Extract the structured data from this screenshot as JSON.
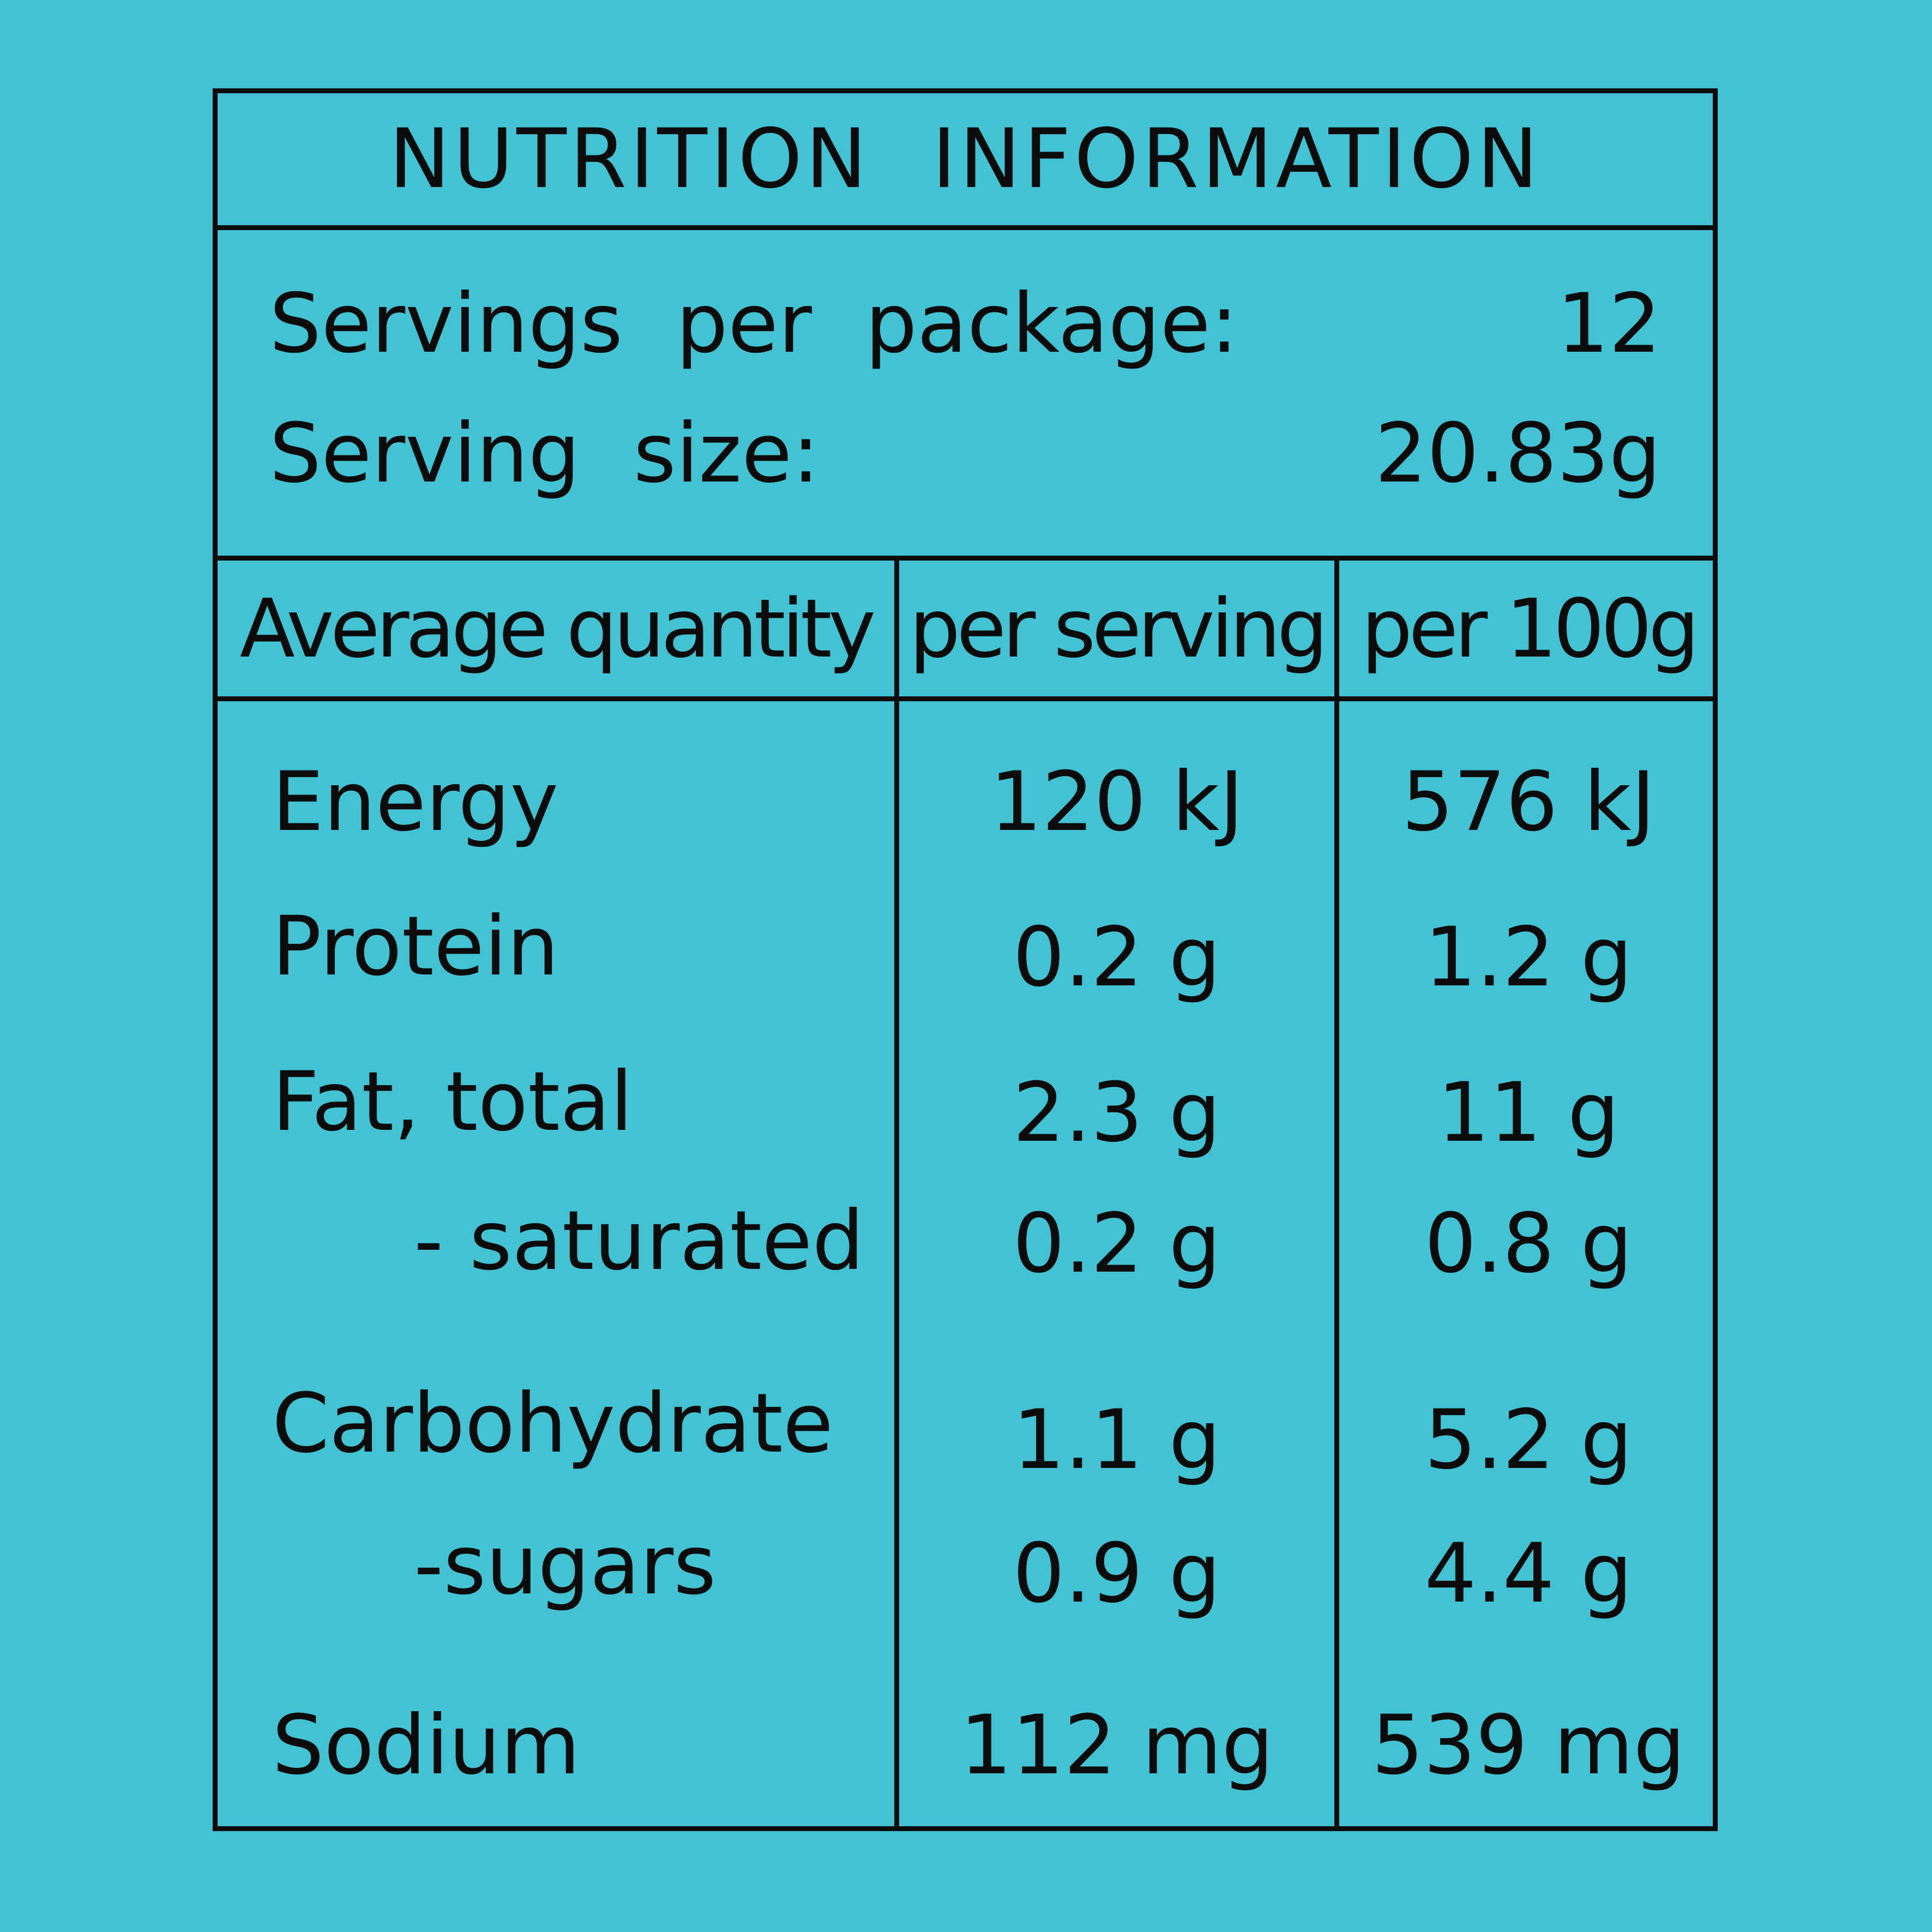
{
  "title": "NUTRITION INFORMATION",
  "servings": {
    "per_package_label": "Servings per package:",
    "per_package_value": "12",
    "size_label": "Serving size:",
    "size_value": "20.83g"
  },
  "columns": {
    "quantity": "Average quantity",
    "per_serving": "per serving",
    "per_100g": "per 100g"
  },
  "rows": [
    {
      "label": "Energy",
      "per_serving": "120 kJ",
      "per_100g": "576 kJ"
    },
    {
      "label": "Protein",
      "per_serving": "0.2 g",
      "per_100g": "1.2 g"
    },
    {
      "label": "Fat, total",
      "per_serving": "2.3 g",
      "per_100g": "11 g"
    },
    {
      "label": "- saturated",
      "per_serving": "0.2 g",
      "per_100g": "0.8 g"
    },
    {
      "label": "Carbohydrate",
      "per_serving": "1.1 g",
      "per_100g": "5.2 g"
    },
    {
      "label": "-sugars",
      "per_serving": "0.9 g",
      "per_100g": "4.4 g"
    },
    {
      "label": "Sodium",
      "per_serving": "112 mg",
      "per_100g": "539 mg"
    }
  ],
  "colors": {
    "background": "#42c2d3",
    "ink": "#0b0b0b"
  }
}
